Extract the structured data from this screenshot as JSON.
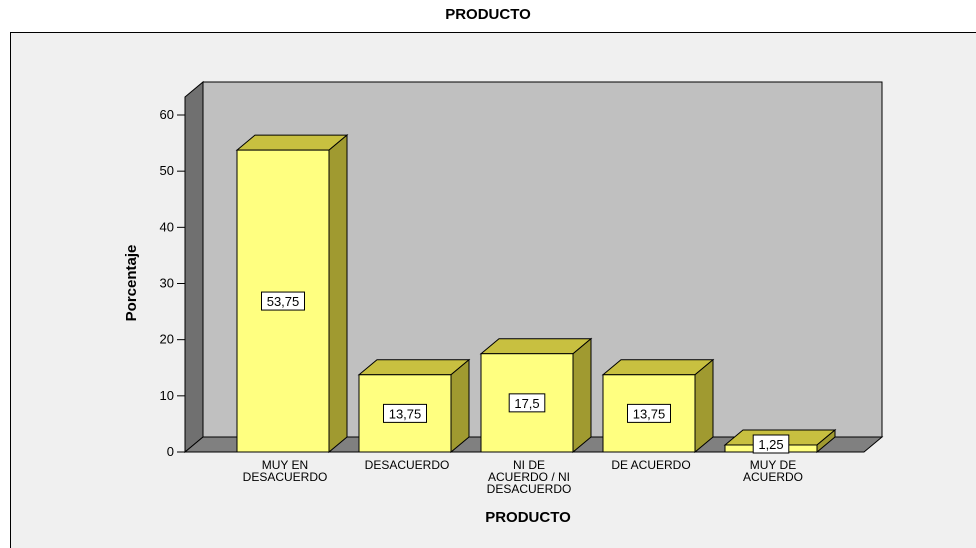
{
  "chart_data": {
    "type": "bar",
    "title": "PRODUCTO",
    "xlabel": "PRODUCTO",
    "ylabel": "Porcentaje",
    "categories": [
      [
        "MUY EN",
        "DESACUERDO"
      ],
      [
        "DESACUERDO"
      ],
      [
        "NI DE",
        "ACUERDO / NI",
        "DESACUERDO"
      ],
      [
        "DE ACUERDO"
      ],
      [
        "MUY DE",
        "ACUERDO"
      ]
    ],
    "values": [
      53.75,
      13.75,
      17.5,
      13.75,
      1.25
    ],
    "data_labels": [
      "53,75",
      "13,75",
      "17,5",
      "13,75",
      "1,25"
    ],
    "yticks": [
      0,
      10,
      20,
      30,
      40,
      50,
      60
    ],
    "ylim": [
      0,
      60
    ],
    "grid": false,
    "legend": "none",
    "colors": {
      "bar_face": "#ffff80",
      "bar_top": "#c8c040",
      "bar_side": "#a09a30",
      "plot_back": "#c0c0c0",
      "plot_left_wall": "#707070",
      "plot_floor": "#808080",
      "chart_background": "#f0f0f0"
    }
  }
}
